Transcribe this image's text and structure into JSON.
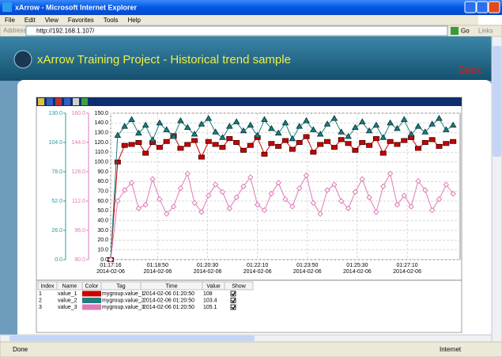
{
  "window": {
    "title": "xArrow - Microsoft Internet Explorer"
  },
  "menu": [
    "File",
    "Edit",
    "View",
    "Favorites",
    "Tools",
    "Help"
  ],
  "address": {
    "label": "Address",
    "url": "http://192.168.1.107/",
    "go": "Go",
    "links": "Links"
  },
  "header": {
    "title": "xArrow Training Project - Historical trend sample",
    "back": "Back"
  },
  "chart_data": {
    "type": "line",
    "grid": true,
    "x": [
      0,
      14,
      28,
      42,
      56,
      70,
      84,
      98,
      112,
      126,
      140,
      154,
      168,
      182,
      196,
      210,
      224,
      238,
      252,
      266,
      280,
      294,
      308,
      322,
      336,
      350,
      364,
      378,
      392,
      406,
      420,
      434,
      448,
      462,
      476,
      490,
      504,
      518,
      532,
      546,
      560,
      574,
      588,
      602,
      616,
      630,
      644,
      658,
      672,
      686
    ],
    "xlim": [
      0,
      700
    ],
    "xticks": [
      {
        "value": 0,
        "label": "01:17:16"
      },
      {
        "value": 94,
        "label": "01:18:50"
      },
      {
        "value": 194,
        "label": "01:20:30"
      },
      {
        "value": 294,
        "label": "01:22:10"
      },
      {
        "value": 394,
        "label": "01:23:50"
      },
      {
        "value": 494,
        "label": "01:25:30"
      },
      {
        "value": 594,
        "label": "01:27:10"
      }
    ],
    "x_date": "2014-02-06",
    "ylim": [
      0,
      150
    ],
    "yticks": [
      {
        "value": 0,
        "label": "0.0"
      },
      {
        "value": 10,
        "label": "10.0"
      },
      {
        "value": 20,
        "label": "20.0"
      },
      {
        "value": 30,
        "label": "30.0"
      },
      {
        "value": 40,
        "label": "40.0"
      },
      {
        "value": 50,
        "label": "50.0"
      },
      {
        "value": 60,
        "label": "60.0"
      },
      {
        "value": 70,
        "label": "70.0"
      },
      {
        "value": 80,
        "label": "80.0"
      },
      {
        "value": 90,
        "label": "90.0"
      },
      {
        "value": 100,
        "label": "100.0"
      },
      {
        "value": 110,
        "label": "110.0"
      },
      {
        "value": 120,
        "label": "120.0"
      },
      {
        "value": 130,
        "label": "130.0"
      },
      {
        "value": 140,
        "label": "140.0"
      },
      {
        "value": 150,
        "label": "150.0"
      }
    ],
    "y2lim": [
      0,
      130
    ],
    "y2color": "#2a9a9a",
    "y2ticks": [
      {
        "value": 0,
        "label": "0.0"
      },
      {
        "value": 26,
        "label": "26.0"
      },
      {
        "value": 52,
        "label": "52.0"
      },
      {
        "value": 78,
        "label": "78.0"
      },
      {
        "value": 104,
        "label": "104.0"
      },
      {
        "value": 130,
        "label": "130.0"
      }
    ],
    "y3lim": [
      80,
      160
    ],
    "y3color": "#e07ab8",
    "y3ticks": [
      {
        "value": 80,
        "label": "80.0"
      },
      {
        "value": 96,
        "label": "96.0"
      },
      {
        "value": 112,
        "label": "112.0"
      },
      {
        "value": 128,
        "label": "128.0"
      },
      {
        "value": 144,
        "label": "144.0"
      },
      {
        "value": 160,
        "label": "160.0"
      }
    ],
    "series": [
      {
        "name": "value_1",
        "color": "#cc0000",
        "marker": "square",
        "axis": "y",
        "values": [
          0,
          100,
          117,
          118,
          120,
          109,
          120,
          115,
          121,
          127,
          114,
          118,
          122,
          105,
          121,
          118,
          115,
          124,
          120,
          112,
          117,
          125,
          108,
          119,
          116,
          122,
          113,
          120,
          126,
          110,
          118,
          121,
          115,
          123,
          119,
          112,
          120,
          117,
          124,
          109,
          121,
          118,
          122,
          125,
          114,
          120,
          123,
          116,
          119,
          121
        ]
      },
      {
        "name": "value_2",
        "color": "#1f7f7f",
        "marker": "triangle",
        "axis": "y2",
        "values": [
          0,
          110,
          118,
          124,
          112,
          119,
          106,
          121,
          115,
          109,
          123,
          117,
          111,
          120,
          125,
          113,
          108,
          118,
          122,
          114,
          119,
          110,
          124,
          116,
          112,
          121,
          107,
          118,
          123,
          115,
          111,
          120,
          125,
          113,
          109,
          117,
          122,
          114,
          119,
          108,
          121,
          116,
          124,
          111,
          118,
          113,
          120,
          125,
          115,
          119
        ]
      },
      {
        "name": "value_3",
        "color": "#e07ab8",
        "marker": "diamond",
        "axis": "y3",
        "values": [
          80,
          112,
          118,
          122,
          108,
          110,
          124,
          113,
          105,
          109,
          119,
          127,
          111,
          106,
          115,
          121,
          117,
          108,
          114,
          120,
          125,
          110,
          107,
          116,
          122,
          113,
          109,
          119,
          126,
          111,
          105,
          118,
          121,
          112,
          108,
          117,
          124,
          114,
          106,
          120,
          127,
          110,
          115,
          109,
          123,
          118,
          107,
          113,
          121,
          116
        ]
      }
    ]
  },
  "table": {
    "columns": [
      "Index",
      "Name",
      "Color",
      "Tag",
      "Time",
      "Value",
      "Show"
    ],
    "rows": [
      {
        "index": "1",
        "name": "value_1",
        "color": "#cc0000",
        "tag": "mygroup.value_1",
        "time": "2014-02-06 01:20:50",
        "value": "108",
        "show": true
      },
      {
        "index": "2",
        "name": "value_2",
        "color": "#1f7f7f",
        "tag": "mygroup.value_2",
        "time": "2014-02-06 01:20:50",
        "value": "103.4",
        "show": true
      },
      {
        "index": "3",
        "name": "value_3",
        "color": "#e07ab8",
        "tag": "mygroup.value_3",
        "time": "2014-02-06 01:20:50",
        "value": "105.1",
        "show": true
      }
    ]
  },
  "status": {
    "text": "Done",
    "zone": "Internet"
  }
}
